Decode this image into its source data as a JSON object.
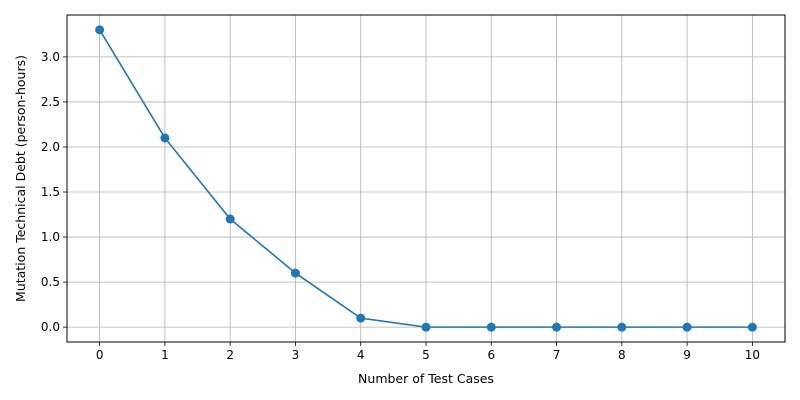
{
  "chart_data": {
    "type": "line",
    "title": "",
    "xlabel": "Number of Test Cases",
    "ylabel": "Mutation Technical Debt (person-hours)",
    "x": [
      0,
      1,
      2,
      3,
      4,
      5,
      6,
      7,
      8,
      9,
      10
    ],
    "series": [
      {
        "values": [
          3.3,
          2.1,
          1.2,
          0.6,
          0.1,
          0.0,
          0.0,
          0.0,
          0.0,
          0.0,
          0.0
        ]
      }
    ],
    "xlim": [
      -0.5,
      10.5
    ],
    "ylim": [
      -0.165,
      3.465
    ],
    "xticks": [
      "0",
      "1",
      "2",
      "3",
      "4",
      "5",
      "6",
      "7",
      "8",
      "9",
      "10"
    ],
    "yticks": [
      "0.0",
      "0.5",
      "1.0",
      "1.5",
      "2.0",
      "2.5",
      "3.0"
    ],
    "ytick_values": [
      0.0,
      0.5,
      1.0,
      1.5,
      2.0,
      2.5,
      3.0
    ],
    "grid": true,
    "markers": "circle",
    "line_color": "#1f77b4",
    "grid_color": "#b0b0b0"
  }
}
